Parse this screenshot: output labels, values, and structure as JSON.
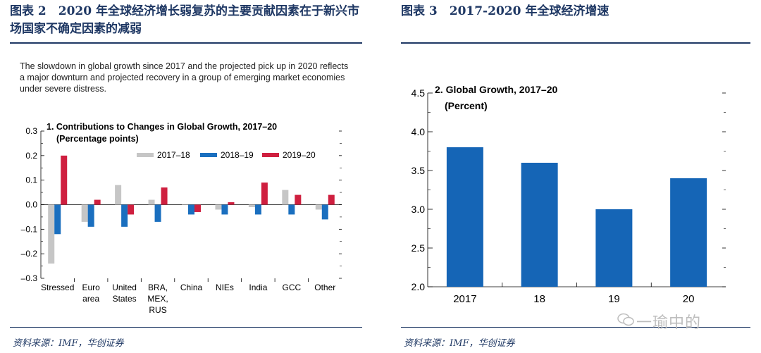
{
  "left_figure": {
    "title": "图表 2　2020 年全球经济增长弱复苏的主要贡献因素在于新兴市场国家不确定因素的减弱",
    "intro": "The slowdown in global growth since 2017 and the projected pick up in 2020 reflects a major downturn and projected recovery in a group of emerging market economies under severe distress.",
    "source": "资料来源：IMF，华创证券"
  },
  "right_figure": {
    "title": "图表 3　2017-2020 年全球经济增速",
    "source": "资料来源：IMF，华创证券"
  },
  "watermark": "一瑜中的",
  "colors": {
    "gray": "#c6c6c6",
    "blue": "#1a6fbf",
    "red": "#cf1f3f",
    "navy": "#1f3864",
    "bar_blue": "#1565b6"
  },
  "chart_data": [
    {
      "type": "bar",
      "title": "1. Contributions to Changes in Global Growth, 2017–20",
      "subtitle": "(Percentage points)",
      "categories": [
        "Stressed",
        "Euro area",
        "United States",
        "BRA, MEX, RUS",
        "China",
        "NIEs",
        "India",
        "GCC",
        "Other"
      ],
      "category_lines": [
        [
          "Stressed"
        ],
        [
          "Euro",
          "area"
        ],
        [
          "United",
          "States"
        ],
        [
          "BRA,",
          "MEX,",
          "RUS"
        ],
        [
          "China"
        ],
        [
          "NIEs"
        ],
        [
          "India"
        ],
        [
          "GCC"
        ],
        [
          "Other"
        ]
      ],
      "series": [
        {
          "name": "2017–18",
          "color": "#c6c6c6",
          "values": [
            -0.24,
            -0.07,
            0.08,
            0.02,
            0.0,
            -0.02,
            -0.01,
            0.06,
            -0.02
          ]
        },
        {
          "name": "2018–19",
          "color": "#1a6fbf",
          "values": [
            -0.12,
            -0.09,
            -0.09,
            -0.07,
            -0.04,
            -0.04,
            -0.04,
            -0.04,
            -0.06
          ]
        },
        {
          "name": "2019–20",
          "color": "#cf1f3f",
          "values": [
            0.2,
            0.02,
            -0.04,
            0.07,
            -0.03,
            0.01,
            0.09,
            0.04,
            0.04
          ]
        }
      ],
      "ylim": [
        -0.3,
        0.3
      ],
      "yticks": [
        0.3,
        0.2,
        0.1,
        0.0,
        -0.1,
        -0.2,
        -0.3
      ],
      "ytick_labels": [
        "0.3",
        "0.2",
        "0.1",
        "0.0",
        "–0.1",
        "–0.2",
        "–0.3"
      ],
      "legend_position": "top-right",
      "xlabel": "",
      "ylabel": ""
    },
    {
      "type": "bar",
      "title": "2. Global Growth, 2017–20",
      "subtitle": "(Percent)",
      "categories": [
        "2017",
        "18",
        "19",
        "20"
      ],
      "values": [
        3.8,
        3.6,
        3.0,
        3.4
      ],
      "color": "#1565b6",
      "ylim": [
        2.0,
        4.5
      ],
      "yticks": [
        4.5,
        4.0,
        3.5,
        3.0,
        2.5,
        2.0
      ],
      "ytick_labels": [
        "4.5",
        "4.0",
        "3.5",
        "3.0",
        "2.5",
        "2.0"
      ],
      "xlabel": "",
      "ylabel": ""
    }
  ]
}
